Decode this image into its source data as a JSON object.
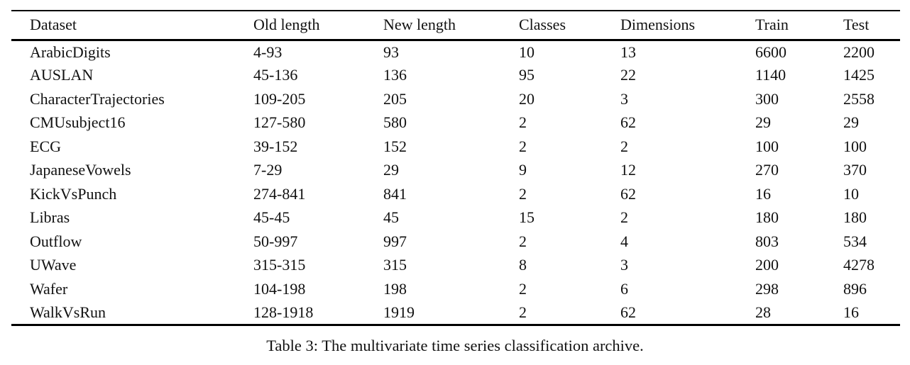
{
  "table": {
    "columns": [
      "Dataset",
      "Old length",
      "New length",
      "Classes",
      "Dimensions",
      "Train",
      "Test"
    ],
    "rows": [
      [
        "ArabicDigits",
        "4-93",
        "93",
        "10",
        "13",
        "6600",
        "2200"
      ],
      [
        "AUSLAN",
        "45-136",
        "136",
        "95",
        "22",
        "1140",
        "1425"
      ],
      [
        "CharacterTrajectories",
        "109-205",
        "205",
        "20",
        "3",
        "300",
        "2558"
      ],
      [
        "CMUsubject16",
        "127-580",
        "580",
        "2",
        "62",
        "29",
        "29"
      ],
      [
        "ECG",
        "39-152",
        "152",
        "2",
        "2",
        "100",
        "100"
      ],
      [
        "JapaneseVowels",
        "7-29",
        "29",
        "9",
        "12",
        "270",
        "370"
      ],
      [
        "KickVsPunch",
        "274-841",
        "841",
        "2",
        "62",
        "16",
        "10"
      ],
      [
        "Libras",
        "45-45",
        "45",
        "15",
        "2",
        "180",
        "180"
      ],
      [
        "Outflow",
        "50-997",
        "997",
        "2",
        "4",
        "803",
        "534"
      ],
      [
        "UWave",
        "315-315",
        "315",
        "8",
        "3",
        "200",
        "4278"
      ],
      [
        "Wafer",
        "104-198",
        "198",
        "2",
        "6",
        "298",
        "896"
      ],
      [
        "WalkVsRun",
        "128-1918",
        "1919",
        "2",
        "62",
        "28",
        "16"
      ]
    ]
  },
  "caption": "Table 3: The multivariate time series classification archive.",
  "colors": {
    "background": "#ffffff",
    "text": "#111111",
    "rule": "#000000"
  }
}
